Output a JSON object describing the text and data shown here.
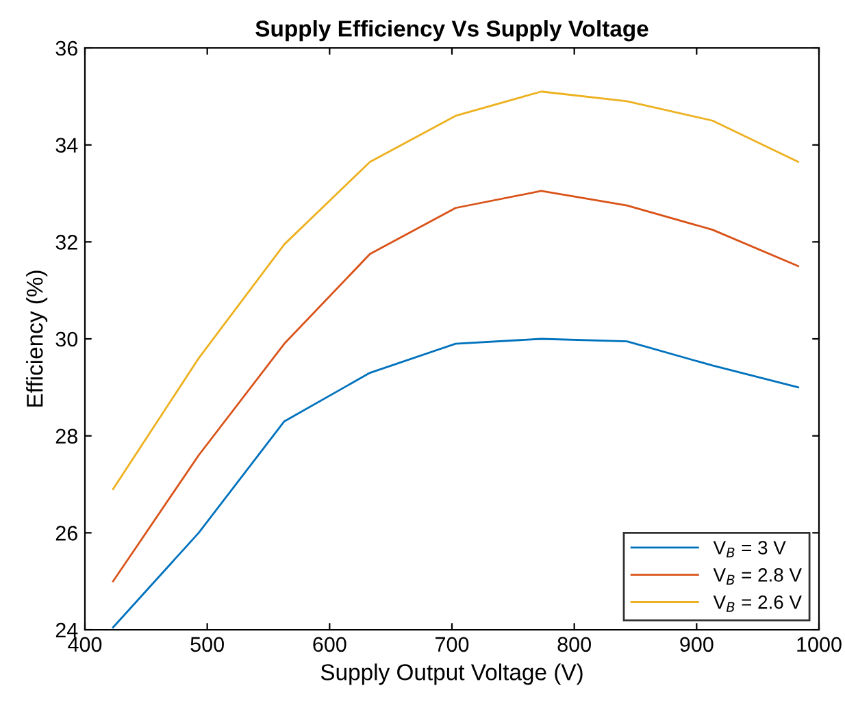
{
  "chart_data": {
    "type": "line",
    "title": "Supply Efficiency Vs Supply Voltage",
    "xlabel": "Supply Output Voltage (V)",
    "ylabel": "Efficiency (%)",
    "x": [
      423,
      493,
      563,
      633,
      703,
      773,
      843,
      913,
      983
    ],
    "series": [
      {
        "name": "V$_{B}$ = 3 V",
        "color": "#0072bd",
        "values": [
          24.05,
          26.0,
          28.3,
          29.3,
          29.9,
          30.0,
          29.95,
          29.45,
          29.0
        ]
      },
      {
        "name": "V$_{B}$ = 2.8 V",
        "color": "#d95319",
        "values": [
          25.0,
          27.6,
          29.9,
          31.75,
          32.7,
          33.05,
          32.75,
          32.25,
          31.5
        ]
      },
      {
        "name": "V$_{B}$ = 2.6 V",
        "color": "#edb120",
        "values": [
          26.9,
          29.6,
          31.95,
          33.65,
          34.6,
          35.1,
          34.9,
          34.5,
          33.65
        ]
      }
    ],
    "xlim": [
      400,
      1000
    ],
    "xticks": [
      400,
      500,
      600,
      700,
      800,
      900,
      1000
    ],
    "ylim": [
      24,
      36
    ],
    "yticks": [
      24,
      26,
      28,
      30,
      32,
      34,
      36
    ],
    "legend": "bottom right",
    "line_style": "solid"
  }
}
